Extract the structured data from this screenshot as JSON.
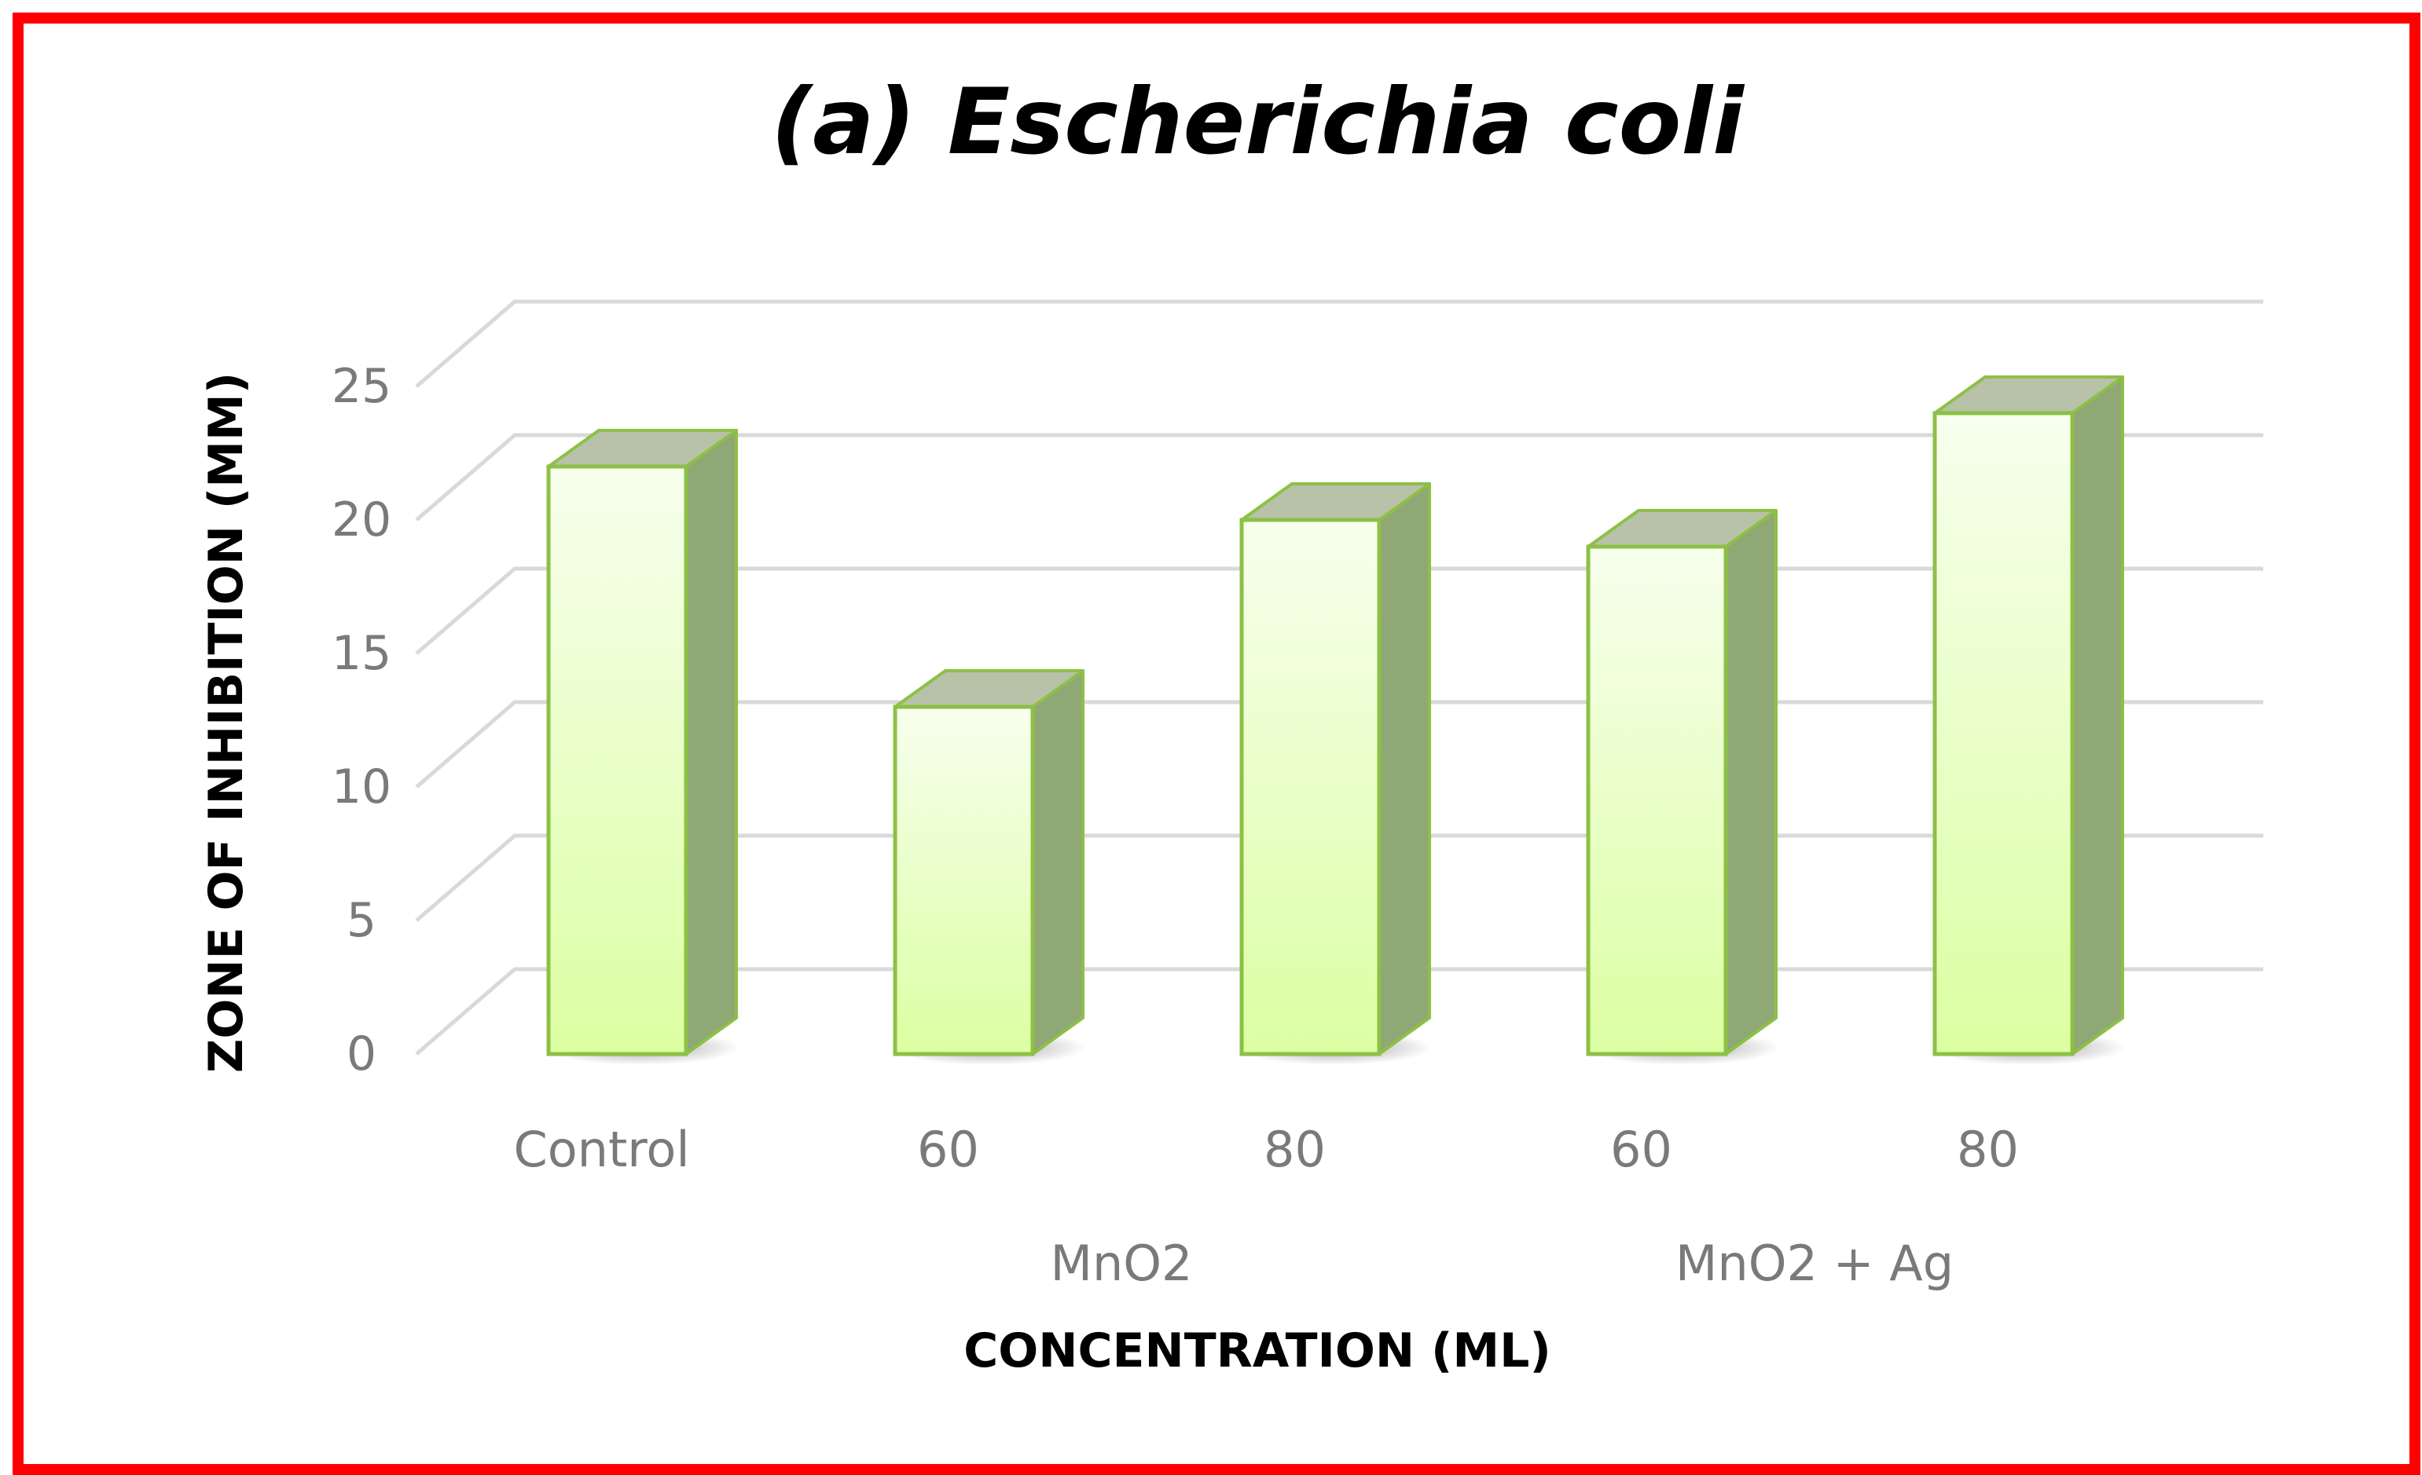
{
  "chart_data": {
    "type": "bar",
    "style": "3d-column",
    "title": "(a) Escherichia coli",
    "xlabel": "CONCENTRATION (ML)",
    "ylabel": "ZONE OF INHIBITION (MM)",
    "ylim": [
      0,
      25
    ],
    "yticks": [
      0,
      5,
      10,
      15,
      20,
      25
    ],
    "grid": true,
    "legend": "none",
    "categories": [
      "Control",
      "60",
      "80",
      "60",
      "80"
    ],
    "groups": [
      {
        "label": "MnO2",
        "categories": [
          1,
          2
        ]
      },
      {
        "label": "MnO2 + Ag",
        "categories": [
          3,
          4
        ]
      }
    ],
    "values": [
      22,
      13,
      20,
      19,
      24
    ]
  },
  "colors": {
    "frame": "#ff0000",
    "grid": "#d9d9d9",
    "bar_edge": "#8dc045",
    "bar_front_top": "#f7ffee",
    "bar_front_bottom": "#dcffa2",
    "bar_side": "#8fa876",
    "bar_top": "#b7c2a8"
  }
}
